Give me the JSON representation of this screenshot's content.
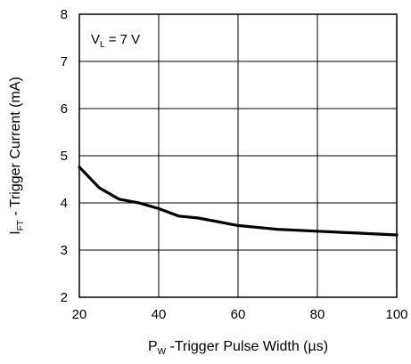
{
  "chart_data": {
    "type": "line",
    "title": "",
    "xlabel": {
      "prefix": "P",
      "subscript": "W",
      "text": " -Trigger Pulse Width (",
      "unit": "µs",
      "suffix": ")"
    },
    "ylabel": {
      "prefix": "I",
      "subscript": "FT",
      "text": " - Trigger Current (mA)"
    },
    "xlim": [
      20,
      100
    ],
    "ylim": [
      2,
      8
    ],
    "xticks": [
      20,
      40,
      60,
      80,
      100
    ],
    "yticks": [
      2,
      3,
      4,
      5,
      6,
      7,
      8
    ],
    "grid": true,
    "annotation": {
      "prefix": "V",
      "subscript": "L",
      "text": " = 7 V"
    },
    "series": [
      {
        "color": "#000000",
        "x": [
          20,
          25,
          30,
          35,
          40,
          45,
          50,
          60,
          70,
          80,
          90,
          100
        ],
        "y": [
          4.76,
          4.32,
          4.08,
          4.0,
          3.88,
          3.72,
          3.68,
          3.52,
          3.44,
          3.4,
          3.36,
          3.32
        ]
      }
    ]
  }
}
